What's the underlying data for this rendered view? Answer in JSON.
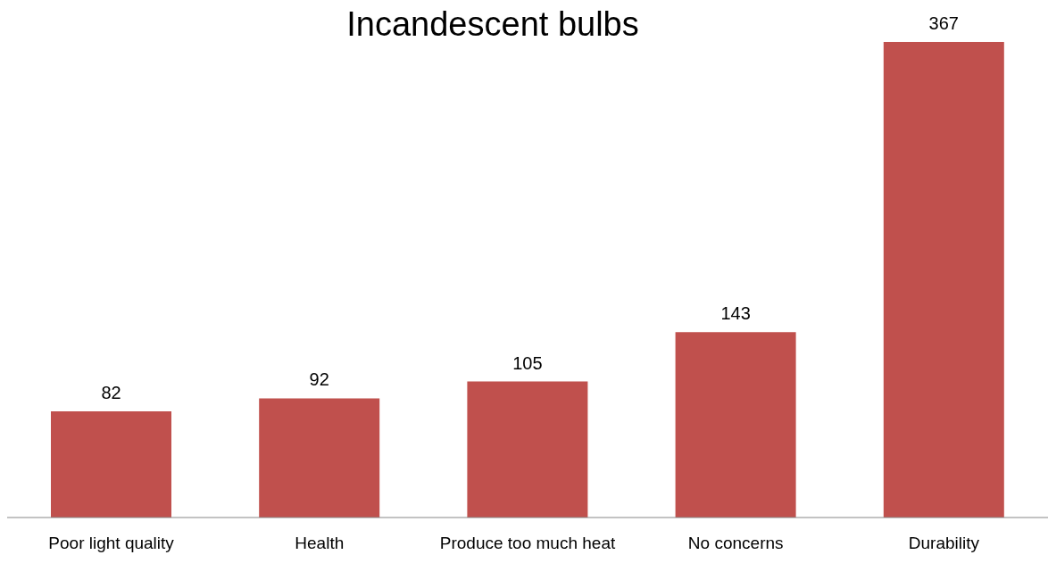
{
  "chart_data": {
    "type": "bar",
    "title": "Incandescent bulbs",
    "categories": [
      "Poor light quality",
      "Health",
      "Produce too much heat",
      "No concerns",
      "Durability"
    ],
    "values": [
      82,
      92,
      105,
      143,
      367
    ],
    "color": "#c0504d",
    "data_labels": true
  }
}
